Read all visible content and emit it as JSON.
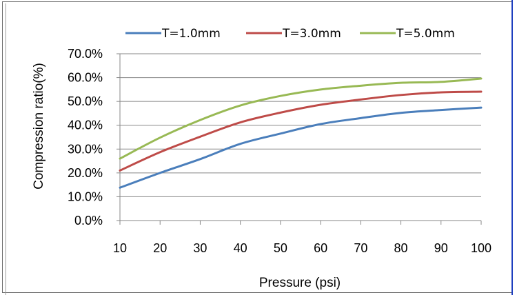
{
  "chart_data": {
    "type": "line",
    "title": "",
    "xlabel": "Pressure (psi)",
    "ylabel": "Compression ratio(%)",
    "x": [
      10,
      20,
      30,
      40,
      50,
      60,
      70,
      80,
      90,
      100
    ],
    "x_ticks": [
      "10",
      "20",
      "30",
      "40",
      "50",
      "60",
      "70",
      "80",
      "90",
      "100"
    ],
    "xlim": [
      10,
      100
    ],
    "ylim": [
      0,
      70
    ],
    "y_ticks": [
      "0.0%",
      "10.0%",
      "20.0%",
      "30.0%",
      "40.0%",
      "50.0%",
      "60.0%",
      "70.0%"
    ],
    "grid": "horizontal",
    "legend_position": "top",
    "series": [
      {
        "name": "T=1.0mm",
        "color": "#4a7ebb",
        "values": [
          13.8,
          20.0,
          25.8,
          32.2,
          36.5,
          40.5,
          43.0,
          45.2,
          46.4,
          47.4
        ]
      },
      {
        "name": "T=3.0mm",
        "color": "#be4b48",
        "values": [
          21.0,
          28.7,
          35.2,
          41.2,
          45.3,
          48.6,
          50.8,
          52.7,
          53.8,
          54.1
        ]
      },
      {
        "name": "T=5.0mm",
        "color": "#98b954",
        "values": [
          26.0,
          34.8,
          42.2,
          48.3,
          52.3,
          55.0,
          56.6,
          57.8,
          58.2,
          59.6
        ]
      }
    ]
  }
}
